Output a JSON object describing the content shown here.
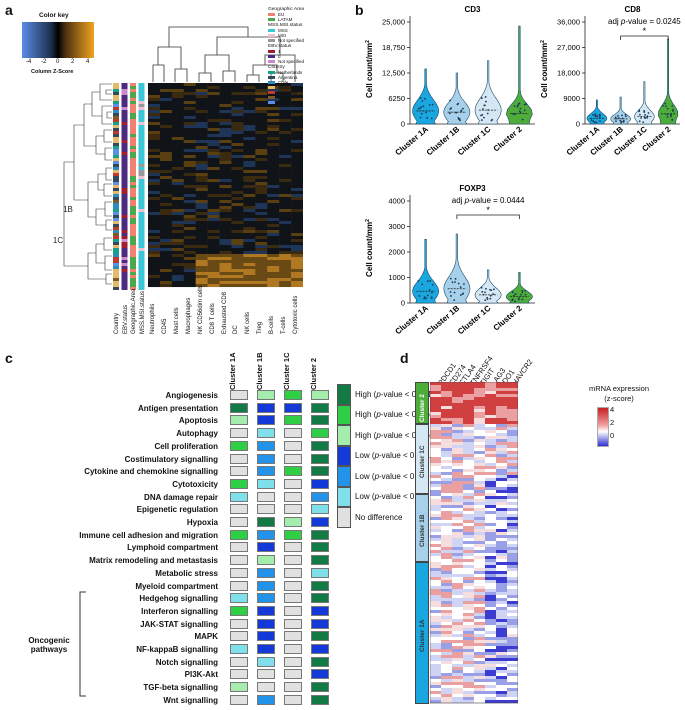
{
  "panel_a": {
    "label": "a",
    "color_key": {
      "title": "Color key",
      "ticks": [
        "-4",
        "-2",
        "0",
        "2",
        "4"
      ],
      "subtitle": "Column Z-Score"
    },
    "clusters": [
      {
        "name": "1A",
        "color": "#1aa7e0"
      },
      {
        "name": "1B",
        "color": "#c6e4f3"
      },
      {
        "name": "1C",
        "color": "#c6e4f3"
      },
      {
        "name": "Cluster 1",
        "color": "#1f63a4"
      },
      {
        "name": "Cluster 2",
        "color": "#4eac3b"
      }
    ],
    "annotation_legend": [
      {
        "title": "Geographic Area",
        "items": [
          {
            "label": "EU",
            "color": "#f08070"
          },
          {
            "label": "LATAM",
            "color": "#4aa84a"
          }
        ]
      },
      {
        "title": "MSS.MSI.status",
        "items": [
          {
            "label": "MSS",
            "color": "#39c9d6"
          },
          {
            "label": "MSI",
            "color": "#f0c0d0"
          },
          {
            "label": "Not specified",
            "color": "#999999"
          }
        ]
      },
      {
        "title": "EBV.status",
        "items": [
          {
            "label": "1",
            "color": "#a01e2e"
          },
          {
            "label": "0",
            "color": "#4b2a80"
          },
          {
            "label": "Not specified",
            "color": "#cc88cc"
          }
        ]
      },
      {
        "title": "Country",
        "items": [
          {
            "label": "Netherlands",
            "color": "#16a085"
          },
          {
            "label": "Argentina",
            "color": "#34495e"
          },
          {
            "label": "Chile",
            "color": "#2e8bc0"
          },
          {
            "label": "Mexico",
            "color": "#e6b96a"
          },
          {
            "label": "Paraguay",
            "color": "#c0392b"
          },
          {
            "label": "Portugal",
            "color": "#7d5a2a"
          },
          {
            "label": "Spain",
            "color": "#5d8ee8"
          }
        ]
      }
    ],
    "annotation_columns": [
      "Country",
      "EBV.status",
      "Geographic.Area",
      "MSS.MSI.status"
    ],
    "heatmap_columns": [
      "Neutrophils",
      "CD45",
      "Mast cells",
      "Macrophages",
      "NK CD56dim cells",
      "CD8 T cells",
      "Exhausted CD8",
      "DC",
      "NK cells",
      "Treg",
      "B-cells",
      "T-cells",
      "Cytotoxic cells"
    ]
  },
  "panel_b": {
    "label": "b",
    "ylabel_main": "Cell count/mm",
    "ylabel_sup": "2",
    "categories": [
      "Cluster 1A",
      "Cluster 1B",
      "Cluster 1C",
      "Cluster 2"
    ],
    "colors": [
      "#1aa7e0",
      "#a7d0ea",
      "#d4e7f3",
      "#4eac3b"
    ],
    "plots": [
      {
        "title": "CD3",
        "ticks": [
          "0",
          "6250",
          "12,500",
          "18,750",
          "25,000"
        ],
        "ylim": [
          0,
          25000
        ],
        "medians": [
          3200,
          2900,
          3400,
          2600
        ],
        "maxes": [
          13500,
          12500,
          15500,
          24000
        ],
        "annotation": "",
        "sig": ""
      },
      {
        "title": "CD8",
        "ticks": [
          "0",
          "9000",
          "18,000",
          "27,000",
          "36,000"
        ],
        "ylim": [
          0,
          36000
        ],
        "medians": [
          2000,
          1800,
          2600,
          3600
        ],
        "maxes": [
          8500,
          9500,
          15000,
          30000
        ],
        "annotation_prefix": "adj ",
        "annotation_italic": "p",
        "annotation_suffix": "-value = 0.0245",
        "sig": "*"
      },
      {
        "title": "FOXP3",
        "ticks": [
          "0",
          "1000",
          "2000",
          "3000",
          "4000"
        ],
        "ylim": [
          0,
          4000
        ],
        "medians": [
          460,
          560,
          320,
          250
        ],
        "maxes": [
          2500,
          2700,
          1300,
          1200
        ],
        "annotation_prefix": "adj ",
        "annotation_italic": "p",
        "annotation_suffix": "-value = 0.0444",
        "sig": "*"
      }
    ]
  },
  "panel_c": {
    "label": "c",
    "columns": [
      "Cluster 1A",
      "Cluster 1B",
      "Cluster 1C",
      "Cluster 2"
    ],
    "pathways": [
      "Angiogenesis",
      "Antigen presentation",
      "Apoptosis",
      "Autophagy",
      "Cell proliferation",
      "Costimulatory signalling",
      "Cytokine and chemokine signalling",
      "Cytotoxicity",
      "DNA damage repair",
      "Epigenetic regulation",
      "Hypoxia",
      "Immune cell adhesion and migration",
      "Lymphoid compartment",
      "Matrix remodeling and metastasis",
      "Metabolic stress",
      "Myeloid compartment",
      "Hedgehog signalling",
      "Interferon signalling",
      "JAK-STAT signalling",
      "MAPK",
      "NF-kappaB signalling",
      "Notch signalling",
      "PI3K-Akt",
      "TGF-beta signalling",
      "Wnt signalling"
    ],
    "oncogenic_label_1": "Oncogenic",
    "oncogenic_label_2": "pathways",
    "cells": [
      [
        "ND",
        "HL",
        "HM",
        "HL"
      ],
      [
        "HH",
        "LH",
        "LH",
        "HH"
      ],
      [
        "HL",
        "LH",
        "HM",
        "HH"
      ],
      [
        "ND",
        "LL",
        "ND",
        "HM"
      ],
      [
        "HM",
        "LM",
        "ND",
        "HH"
      ],
      [
        "ND",
        "LM",
        "ND",
        "HH"
      ],
      [
        "ND",
        "LM",
        "HM",
        "HH"
      ],
      [
        "HM",
        "LL",
        "ND",
        "LH"
      ],
      [
        "LL",
        "ND",
        "ND",
        "LM"
      ],
      [
        "ND",
        "ND",
        "ND",
        "LL"
      ],
      [
        "ND",
        "HH",
        "HL",
        "LH"
      ],
      [
        "HM",
        "LM",
        "HM",
        "HH"
      ],
      [
        "ND",
        "LH",
        "ND",
        "HH"
      ],
      [
        "ND",
        "HL",
        "ND",
        "HH"
      ],
      [
        "ND",
        "LM",
        "ND",
        "LL"
      ],
      [
        "ND",
        "LM",
        "ND",
        "HH"
      ],
      [
        "LL",
        "LM",
        "ND",
        "HH"
      ],
      [
        "HM",
        "LH",
        "ND",
        "LH"
      ],
      [
        "ND",
        "LH",
        "ND",
        "LH"
      ],
      [
        "ND",
        "LH",
        "ND",
        "HH"
      ],
      [
        "LL",
        "LH",
        "ND",
        "LH"
      ],
      [
        "ND",
        "LL",
        "ND",
        "HH"
      ],
      [
        "ND",
        "ND",
        "ND",
        "LH"
      ],
      [
        "HL",
        "ND",
        "ND",
        "HH"
      ],
      [
        "ND",
        "LM",
        "ND",
        "HH"
      ]
    ],
    "key": [
      {
        "code": "HH",
        "text": "High (p-value < 0.001)",
        "color": "#127a45"
      },
      {
        "code": "HM",
        "text": "High (p-value < 0.01)",
        "color": "#2ecf45"
      },
      {
        "code": "HL",
        "text": "High (p-value < 0.05)",
        "color": "#a5ecaf"
      },
      {
        "code": "LH",
        "text": "Low (p-value < 0.001)",
        "color": "#1339d8"
      },
      {
        "code": "LM",
        "text": "Low (p-value < 0.01)",
        "color": "#2293e8"
      },
      {
        "code": "LL",
        "text": "Low (p-value < 0.05)",
        "color": "#7fe0ec"
      },
      {
        "code": "ND",
        "text": "No difference",
        "color": "#e1e1e1"
      }
    ]
  },
  "panel_d": {
    "label": "d",
    "genes": [
      "PDCD1",
      "CD274",
      "CTLA4",
      "TNFRSF4",
      "TIGIT",
      "LAG3",
      "IDO1",
      "HAVCR2"
    ],
    "legend_title_1": "mRNA expression",
    "legend_title_2": "(z-score)",
    "legend_ticks": [
      "4",
      "2",
      "0"
    ],
    "clusters": [
      {
        "name": "Cluster 2",
        "color": "#4eac3b",
        "text_color": "#ffffff"
      },
      {
        "name": "Cluster 1C",
        "color": "#d4e7f3",
        "text_color": "#333333"
      },
      {
        "name": "Cluster 1B",
        "color": "#a7d0ea",
        "text_color": "#333333"
      },
      {
        "name": "Cluster 1A",
        "color": "#1aa7e0",
        "text_color": "#333333"
      }
    ]
  }
}
